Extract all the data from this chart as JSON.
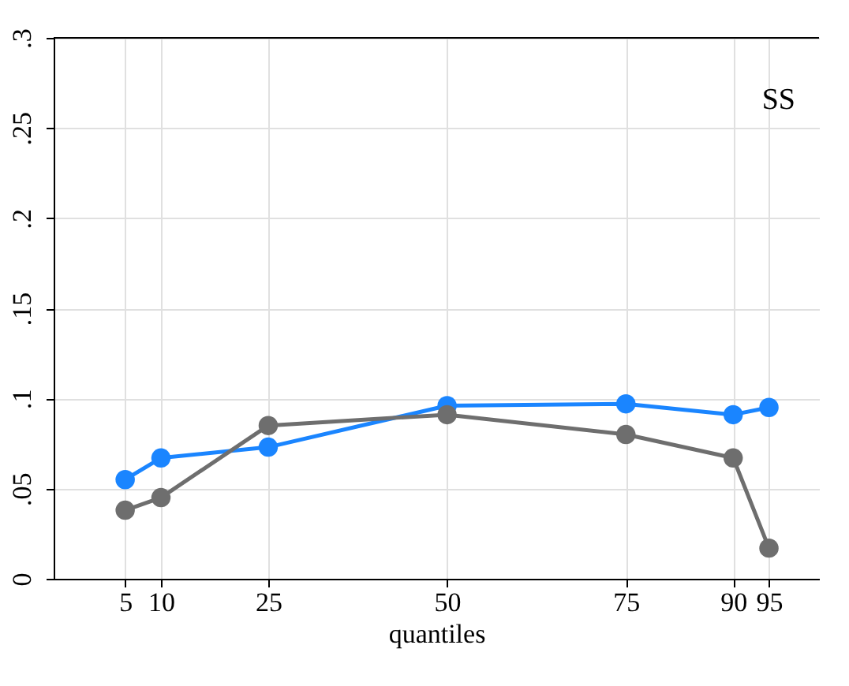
{
  "chart_data": {
    "type": "line",
    "xlabel": "quantiles",
    "x": [
      5,
      10,
      25,
      50,
      75,
      90,
      95
    ],
    "series": [
      {
        "color": "#1a85ff",
        "values": [
          0.055,
          0.067,
          0.073,
          0.096,
          0.097,
          0.091,
          0.095
        ]
      },
      {
        "color": "#6e6e6e",
        "values": [
          0.038,
          0.045,
          0.085,
          0.091,
          0.08,
          0.067,
          0.017
        ]
      }
    ],
    "xlim": [
      -5,
      102
    ],
    "xticks": [
      5,
      10,
      25,
      50,
      75,
      90,
      95
    ],
    "ylim": [
      0,
      0.3
    ],
    "yticks": [
      0,
      {
        "value": 0.05,
        "label": ".05"
      },
      {
        "value": 0.1,
        "label": ".1"
      },
      {
        "value": 0.15,
        "label": ".15"
      },
      {
        "value": 0.2,
        "label": ".2"
      },
      {
        "value": 0.25,
        "label": ".25"
      },
      {
        "value": 0.3,
        "label": ".3"
      }
    ],
    "grid": true,
    "marker": "circle",
    "line_style": "solid",
    "annotations": [
      "SS"
    ]
  }
}
